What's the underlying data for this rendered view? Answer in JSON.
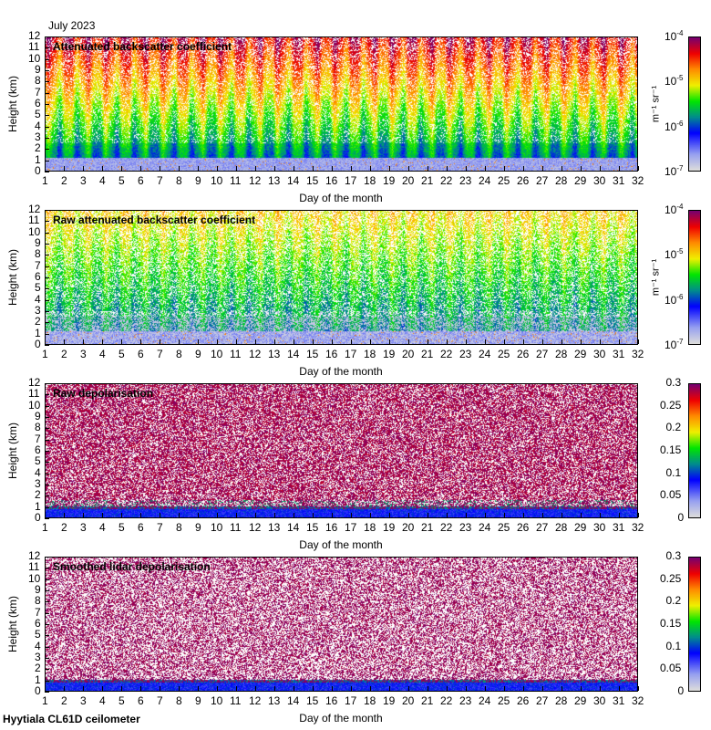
{
  "header": {
    "date": "July 2023"
  },
  "footer": {
    "site": "Hyytiala CL61D ceilometer"
  },
  "chart_data": [
    {
      "type": "heatmap",
      "title": "Attenuated backscatter coefficient",
      "xlabel": "Day of the month",
      "ylabel": "Height (km)",
      "xlim": [
        1,
        32
      ],
      "ylim": [
        0,
        12
      ],
      "xticks": [
        "1",
        "2",
        "3",
        "4",
        "5",
        "6",
        "7",
        "8",
        "9",
        "10",
        "11",
        "12",
        "13",
        "14",
        "15",
        "16",
        "17",
        "18",
        "19",
        "20",
        "21",
        "22",
        "23",
        "24",
        "25",
        "26",
        "27",
        "28",
        "29",
        "30",
        "31",
        "32"
      ],
      "yticks": [
        "0",
        "1",
        "2",
        "3",
        "4",
        "5",
        "6",
        "7",
        "8",
        "9",
        "10",
        "11",
        "12"
      ],
      "colorbar": {
        "scale": "log",
        "range": [
          1e-07,
          0.0001
        ],
        "ticks": [
          {
            "b": "10",
            "e": "-7"
          },
          {
            "b": "10",
            "e": "-6"
          },
          {
            "b": "10",
            "e": "-5"
          },
          {
            "b": "10",
            "e": "-4"
          }
        ],
        "unit": "m⁻¹ sr⁻¹"
      }
    },
    {
      "type": "heatmap",
      "title": "Raw attenuated backscatter coefficient",
      "xlabel": "Day of the month",
      "ylabel": "Height (km)",
      "xlim": [
        1,
        32
      ],
      "ylim": [
        0,
        12
      ],
      "xticks": [
        "1",
        "2",
        "3",
        "4",
        "5",
        "6",
        "7",
        "8",
        "9",
        "10",
        "11",
        "12",
        "13",
        "14",
        "15",
        "16",
        "17",
        "18",
        "19",
        "20",
        "21",
        "22",
        "23",
        "24",
        "25",
        "26",
        "27",
        "28",
        "29",
        "30",
        "31",
        "32"
      ],
      "yticks": [
        "0",
        "1",
        "2",
        "3",
        "4",
        "5",
        "6",
        "7",
        "8",
        "9",
        "10",
        "11",
        "12"
      ],
      "colorbar": {
        "scale": "log",
        "range": [
          1e-07,
          0.0001
        ],
        "ticks": [
          {
            "b": "10",
            "e": "-7"
          },
          {
            "b": "10",
            "e": "-6"
          },
          {
            "b": "10",
            "e": "-5"
          },
          {
            "b": "10",
            "e": "-4"
          }
        ],
        "unit": "m⁻¹ sr⁻¹"
      }
    },
    {
      "type": "heatmap",
      "title": "Raw depolarisation",
      "xlabel": "Day of the month",
      "ylabel": "Height (km)",
      "xlim": [
        1,
        32
      ],
      "ylim": [
        0,
        12
      ],
      "xticks": [
        "1",
        "2",
        "3",
        "4",
        "5",
        "6",
        "7",
        "8",
        "9",
        "10",
        "11",
        "12",
        "13",
        "14",
        "15",
        "16",
        "17",
        "18",
        "19",
        "20",
        "21",
        "22",
        "23",
        "24",
        "25",
        "26",
        "27",
        "28",
        "29",
        "30",
        "31",
        "32"
      ],
      "yticks": [
        "0",
        "1",
        "2",
        "3",
        "4",
        "5",
        "6",
        "7",
        "8",
        "9",
        "10",
        "11",
        "12"
      ],
      "colorbar": {
        "scale": "linear",
        "range": [
          0,
          0.3
        ],
        "ticks": [
          "0",
          "0.05",
          "0.1",
          "0.15",
          "0.2",
          "0.25",
          "0.3"
        ],
        "unit": ""
      }
    },
    {
      "type": "heatmap",
      "title": "Smoothed lidar depolarisation",
      "xlabel": "Day of the month",
      "ylabel": "Height (km)",
      "xlim": [
        1,
        32
      ],
      "ylim": [
        0,
        12
      ],
      "xticks": [
        "1",
        "2",
        "3",
        "4",
        "5",
        "6",
        "7",
        "8",
        "9",
        "10",
        "11",
        "12",
        "13",
        "14",
        "15",
        "16",
        "17",
        "18",
        "19",
        "20",
        "21",
        "22",
        "23",
        "24",
        "25",
        "26",
        "27",
        "28",
        "29",
        "30",
        "31",
        "32"
      ],
      "yticks": [
        "0",
        "1",
        "2",
        "3",
        "4",
        "5",
        "6",
        "7",
        "8",
        "9",
        "10",
        "11",
        "12"
      ],
      "colorbar": {
        "scale": "linear",
        "range": [
          0,
          0.3
        ],
        "ticks": [
          "0",
          "0.05",
          "0.1",
          "0.15",
          "0.2",
          "0.25",
          "0.3"
        ],
        "unit": ""
      }
    }
  ]
}
